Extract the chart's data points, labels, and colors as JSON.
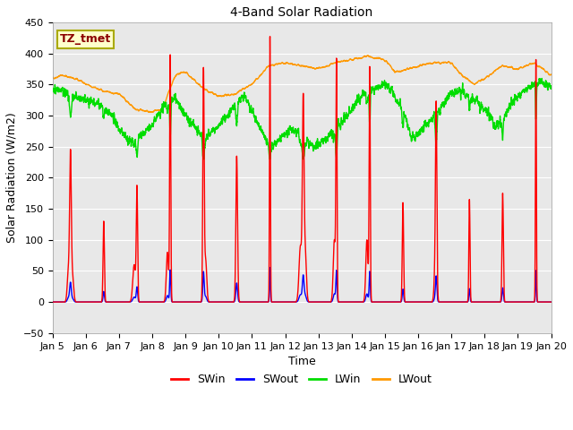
{
  "title": "4-Band Solar Radiation",
  "xlabel": "Time",
  "ylabel": "Solar Radiation (W/m2)",
  "ylim": [
    -50,
    450
  ],
  "xlim_days": [
    0,
    15
  ],
  "annotation_label": "TZ_tmet",
  "series_colors": {
    "SWin": "#ff0000",
    "SWout": "#0000ff",
    "LWin": "#00dd00",
    "LWout": "#ff9900"
  },
  "legend_labels": [
    "SWin",
    "SWout",
    "LWin",
    "LWout"
  ],
  "xtick_labels": [
    "Jan 5",
    "Jan 6",
    "Jan 7",
    "Jan 8",
    "Jan 9",
    "Jan 10",
    "Jan 11",
    "Jan 12",
    "Jan 13",
    "Jan 14",
    "Jan 15",
    "Jan 16",
    "Jan 17",
    "Jan 18",
    "Jan 19",
    "Jan 20"
  ],
  "grid_color": "#ffffff",
  "plot_bg_color": "#e8e8e8",
  "fig_bg_color": "#ffffff"
}
